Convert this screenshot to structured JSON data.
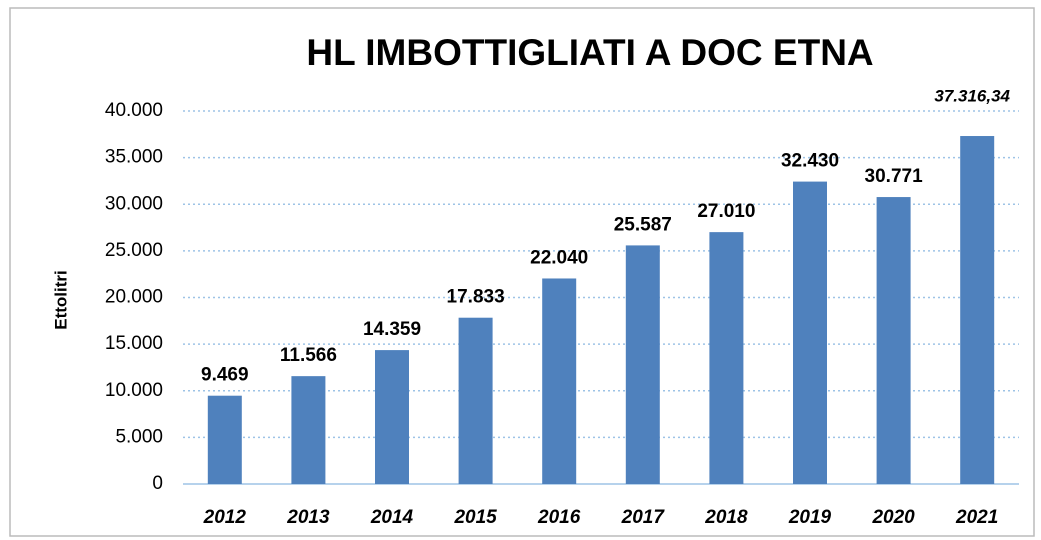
{
  "chart_data": {
    "type": "bar",
    "title": "HL IMBOTTIGLIATI A DOC ETNA",
    "y_label": "Ettolitri",
    "categories": [
      "2012",
      "2013",
      "2014",
      "2015",
      "2016",
      "2017",
      "2018",
      "2019",
      "2020",
      "2021"
    ],
    "values": [
      9469,
      11566,
      14359,
      17833,
      22040,
      25587,
      27010,
      32430,
      30771,
      37316.34
    ],
    "value_labels": [
      "9.469",
      "11.566",
      "14.359",
      "17.833",
      "22.040",
      "25.587",
      "27.010",
      "32.430",
      "30.771",
      "37.316,34"
    ],
    "color": "#4f81bd",
    "ylim": [
      0,
      40000
    ],
    "yticks": [
      0,
      {
        "value": 5000,
        "label": "5.000"
      },
      {
        "value": 10000,
        "label": "10.000"
      },
      {
        "value": 15000,
        "label": "15.000"
      },
      {
        "value": 20000,
        "label": "20.000"
      },
      {
        "value": 25000,
        "label": "25.000"
      },
      {
        "value": 30000,
        "label": "30.000"
      },
      {
        "value": 35000,
        "label": "35.000"
      },
      {
        "value": 40000,
        "label": "40.000"
      }
    ],
    "grid": true
  }
}
